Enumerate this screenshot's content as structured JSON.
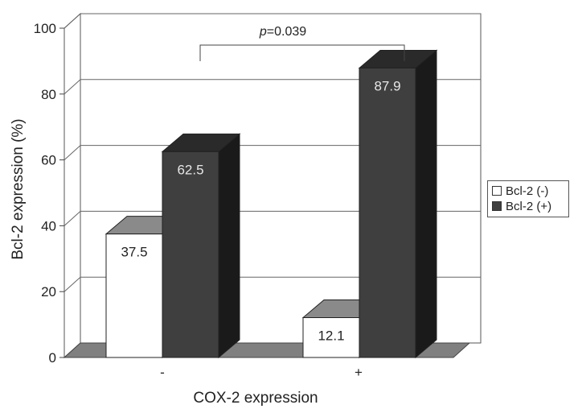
{
  "chart_data": {
    "type": "bar",
    "categories": [
      "-",
      "+"
    ],
    "series": [
      {
        "name": "Bcl-2 (-)",
        "values": [
          37.5,
          12.1
        ],
        "color": "#ffffff"
      },
      {
        "name": "Bcl-2 (+)",
        "values": [
          62.5,
          87.9
        ],
        "color": "#3f3f3f"
      }
    ],
    "data_labels": [
      "37.5",
      "62.5",
      "12.1",
      "87.9"
    ],
    "xlabel": "COX-2 expression",
    "ylabel": "Bcl-2 expression (%)",
    "ylim": [
      0,
      100
    ],
    "yticks": [
      "0",
      "20",
      "40",
      "60",
      "80",
      "100"
    ],
    "grid": true,
    "style": "3d",
    "legend_position": "right",
    "annotation": {
      "italic": "p",
      "text": "=0.039"
    }
  }
}
